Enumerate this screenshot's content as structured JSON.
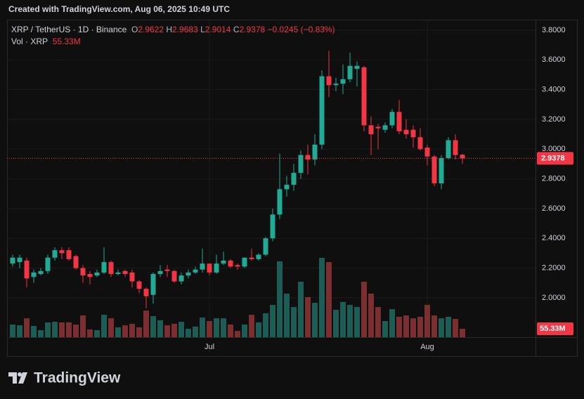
{
  "header": {
    "created": "Created with TradingView.com, Aug 06, 2025 10:49 UTC"
  },
  "footer": {
    "logo": "TradingView"
  },
  "chart_data": {
    "type": "candlestick",
    "title": "XRP / TetherUS · 1D · Binance",
    "ohlc_legend": {
      "open_label": "O",
      "open": 2.9622,
      "high_label": "H",
      "high": 2.9683,
      "low_label": "L",
      "low": 2.9014,
      "close_label": "C",
      "close": 2.9378,
      "change": "−0.0245 (−0.83%)"
    },
    "volume_title": "Vol · XRP",
    "categories": [
      null,
      null,
      null,
      null,
      null,
      null,
      null,
      null,
      null,
      null,
      null,
      null,
      null,
      null,
      null,
      null,
      null,
      null,
      null,
      null,
      null,
      null,
      null,
      null,
      null,
      null,
      null,
      null,
      "Jul",
      null,
      null,
      null,
      null,
      null,
      null,
      null,
      null,
      null,
      null,
      null,
      null,
      null,
      null,
      null,
      null,
      null,
      null,
      null,
      null,
      null,
      null,
      null,
      null,
      null,
      null,
      null,
      null,
      null,
      null,
      "Aug",
      null,
      null,
      null,
      null,
      null
    ],
    "open": [
      2.23,
      2.24,
      2.25,
      2.14,
      2.16,
      2.18,
      2.27,
      2.32,
      2.32,
      2.28,
      2.2,
      2.16,
      2.15,
      2.17,
      2.24,
      2.16,
      2.18,
      2.17,
      2.11,
      2.06,
      2.02,
      2.16,
      2.19,
      2.18,
      2.11,
      2.15,
      2.17,
      2.19,
      2.23,
      2.17,
      2.23,
      2.25,
      2.22,
      2.21,
      2.27,
      2.26,
      2.29,
      2.4,
      2.56,
      2.73,
      2.76,
      2.84,
      2.96,
      2.93,
      3.03,
      3.49,
      3.43,
      3.44,
      3.47,
      3.54,
      3.55,
      3.16,
      3.15,
      3.13,
      3.16,
      3.25,
      3.13,
      3.13,
      3.08,
      3.01,
      2.95,
      2.77,
      2.94,
      3.06,
      2.9622
    ],
    "high": [
      2.29,
      2.29,
      2.27,
      2.19,
      2.2,
      2.29,
      2.34,
      2.34,
      2.34,
      2.29,
      2.22,
      2.18,
      2.19,
      2.34,
      2.25,
      2.19,
      2.19,
      2.19,
      2.12,
      2.07,
      2.17,
      2.22,
      2.22,
      2.19,
      2.17,
      2.19,
      2.21,
      2.33,
      2.23,
      2.29,
      2.31,
      2.26,
      2.23,
      2.27,
      2.33,
      2.3,
      2.41,
      2.6,
      2.97,
      2.82,
      2.9,
      2.99,
      3.03,
      3.1,
      3.53,
      3.66,
      3.48,
      3.57,
      3.65,
      3.59,
      3.56,
      3.22,
      3.17,
      3.18,
      3.27,
      3.33,
      3.2,
      3.16,
      3.14,
      3.03,
      2.96,
      2.96,
      3.08,
      3.1,
      2.9683
    ],
    "low": [
      2.21,
      2.2,
      2.07,
      2.1,
      2.15,
      2.16,
      2.25,
      2.26,
      2.25,
      2.19,
      2.1,
      2.09,
      2.14,
      2.16,
      2.14,
      2.15,
      2.14,
      2.07,
      2.03,
      1.93,
      1.96,
      2.14,
      2.14,
      2.1,
      2.09,
      2.13,
      2.16,
      2.17,
      2.15,
      2.16,
      2.22,
      2.2,
      2.19,
      2.2,
      2.25,
      2.25,
      2.28,
      2.38,
      2.53,
      2.68,
      2.72,
      2.8,
      2.83,
      2.89,
      3.0,
      3.35,
      3.39,
      3.37,
      3.45,
      3.42,
      3.12,
      2.96,
      3.0,
      3.11,
      3.14,
      3.1,
      3.07,
      3.01,
      2.99,
      2.89,
      2.75,
      2.73,
      2.93,
      2.93,
      2.9014
    ],
    "close": [
      2.27,
      2.27,
      2.13,
      2.17,
      2.18,
      2.27,
      2.32,
      2.3,
      2.26,
      2.2,
      2.15,
      2.14,
      2.17,
      2.24,
      2.16,
      2.17,
      2.16,
      2.11,
      2.06,
      2.01,
      2.16,
      2.18,
      2.18,
      2.11,
      2.15,
      2.17,
      2.19,
      2.23,
      2.17,
      2.23,
      2.25,
      2.21,
      2.21,
      2.27,
      2.26,
      2.29,
      2.4,
      2.56,
      2.73,
      2.76,
      2.84,
      2.96,
      2.93,
      3.03,
      3.49,
      3.43,
      3.44,
      3.47,
      3.56,
      3.56,
      3.16,
      3.1,
      3.14,
      3.16,
      3.25,
      3.12,
      3.1,
      3.08,
      3.0,
      2.95,
      2.77,
      2.94,
      3.06,
      2.96,
      2.9378
    ],
    "volume": [
      83000000,
      78000000,
      124000000,
      74000000,
      46000000,
      97000000,
      101000000,
      97000000,
      97000000,
      83000000,
      143000000,
      51000000,
      46000000,
      147000000,
      124000000,
      65000000,
      78000000,
      88000000,
      65000000,
      175000000,
      138000000,
      111000000,
      78000000,
      88000000,
      101000000,
      55000000,
      69000000,
      129000000,
      106000000,
      124000000,
      124000000,
      83000000,
      41000000,
      83000000,
      147000000,
      97000000,
      157000000,
      212000000,
      498000000,
      286000000,
      198000000,
      364000000,
      263000000,
      226000000,
      521000000,
      493000000,
      180000000,
      231000000,
      212000000,
      198000000,
      364000000,
      286000000,
      198000000,
      106000000,
      184000000,
      134000000,
      143000000,
      124000000,
      134000000,
      212000000,
      143000000,
      124000000,
      134000000,
      120000000,
      55330000
    ],
    "volume_labels": [
      null,
      null,
      null,
      null,
      null,
      null,
      null,
      null,
      null,
      null,
      null,
      null,
      null,
      null,
      null,
      null,
      null,
      null,
      null,
      null,
      null,
      null,
      null,
      null,
      null,
      null,
      null,
      null,
      null,
      null,
      null,
      null,
      null,
      null,
      null,
      null,
      null,
      null,
      null,
      null,
      null,
      null,
      null,
      null,
      null,
      null,
      null,
      null,
      null,
      null,
      null,
      null,
      null,
      null,
      null,
      null,
      null,
      null,
      null,
      null,
      null,
      null,
      null,
      null,
      "55.33M"
    ],
    "up_color": "#22ab94",
    "down_color": "#f23645",
    "volume_up_color": "#1d5d56",
    "volume_down_color": "#7c2f31",
    "ylim": [
      1.735,
      3.861
    ],
    "volume_ylim": [
      0,
      553300000
    ],
    "yticks": [
      {
        "value": 2.0,
        "label": "2.0000"
      },
      {
        "value": 2.2,
        "label": "2.2000"
      },
      {
        "value": 2.4,
        "label": "2.4000"
      },
      {
        "value": 2.6,
        "label": "2.6000"
      },
      {
        "value": 2.8,
        "label": "2.8000"
      },
      {
        "value": 3.0,
        "label": "3.0000"
      },
      {
        "value": 3.2,
        "label": "3.2000"
      },
      {
        "value": 3.4,
        "label": "3.4000"
      },
      {
        "value": 3.6,
        "label": "3.6000"
      },
      {
        "value": 3.8,
        "label": "3.8000"
      }
    ],
    "grid": true
  }
}
